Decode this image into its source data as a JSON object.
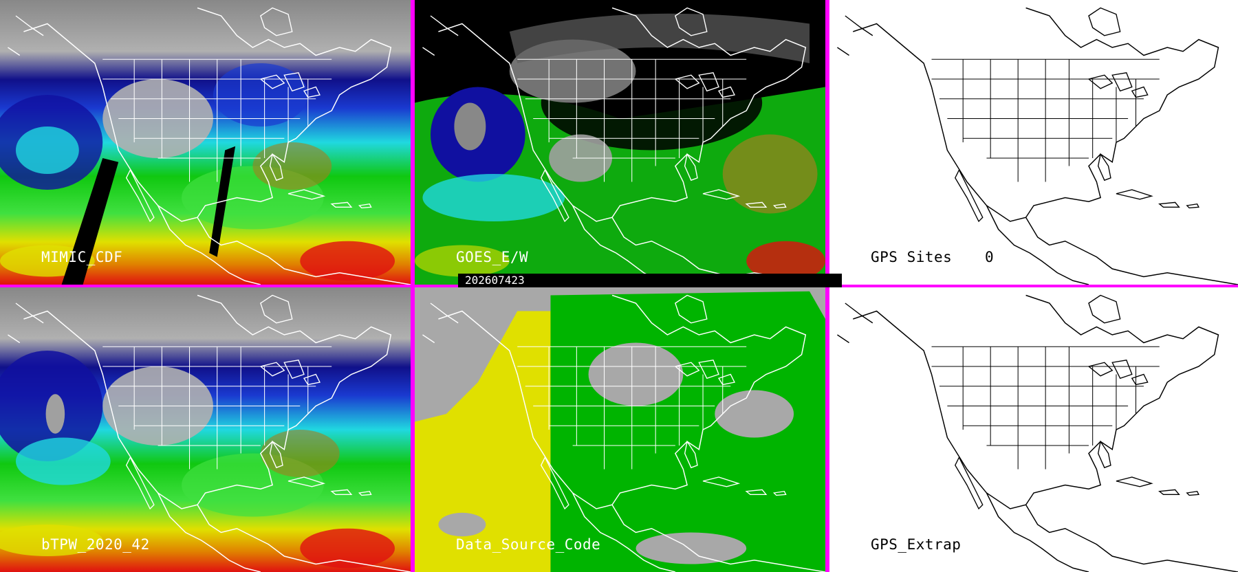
{
  "panels": [
    {
      "id": "p1",
      "label": "MIMIC_CDF",
      "type": "tpw"
    },
    {
      "id": "p2",
      "label": "GOES_E/W",
      "type": "goes"
    },
    {
      "id": "p3",
      "label": "GPS Sites",
      "count": "0",
      "type": "outline"
    },
    {
      "id": "p4",
      "label": "bTPW_2020_42",
      "type": "tpw"
    },
    {
      "id": "p5",
      "label": "Data_Source_Code",
      "type": "source"
    },
    {
      "id": "p6",
      "label": "GPS_Extrap",
      "type": "outline"
    }
  ],
  "timestamp": "202607423",
  "colors": {
    "divider": "#ff00ff",
    "source_yellow": "#e0e000",
    "source_green": "#00b400",
    "source_gray": "#a8a8a8"
  }
}
